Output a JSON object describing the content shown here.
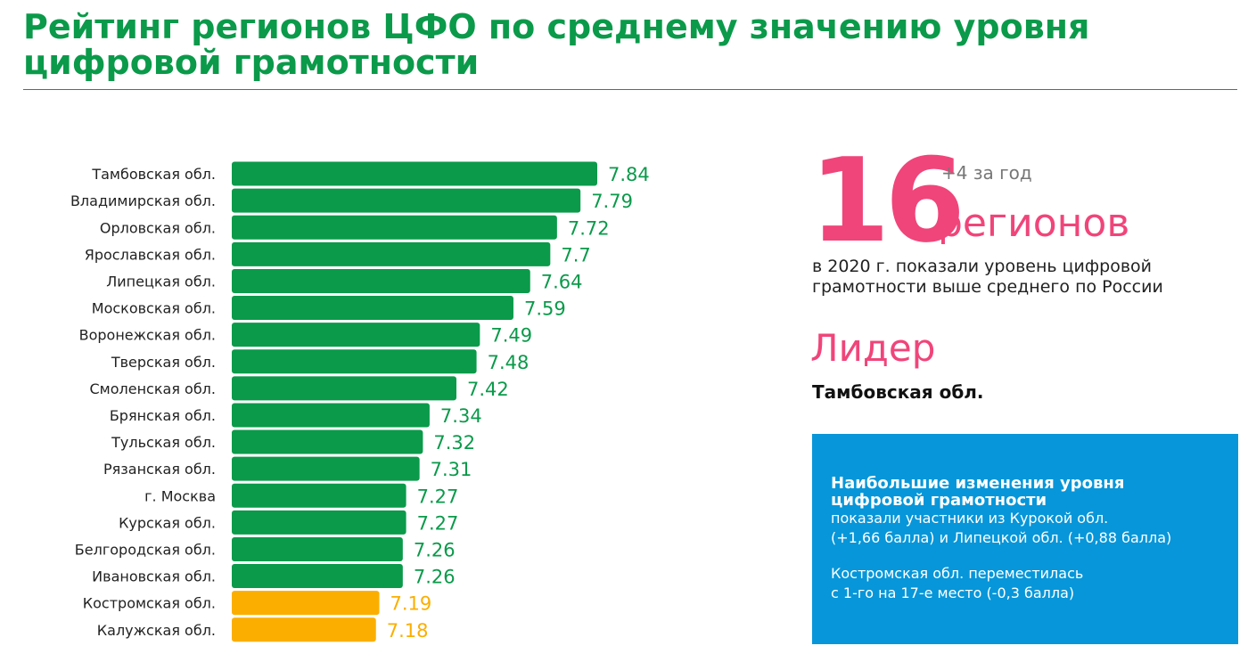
{
  "title": "Рейтинг регионов ЦФО по среднему значению уровня цифровой грамотности",
  "colors": {
    "green": "#0a9a4a",
    "orange": "#fbae00",
    "pink": "#f0457a",
    "blue": "#0796d9"
  },
  "stat": {
    "number": "16",
    "delta": "+4 за год",
    "unit": "регионов",
    "description": "в 2020 г. показали уровень цифровой грамотности выше среднего по России"
  },
  "leader": {
    "label": "Лидер",
    "name": "Тамбовская обл."
  },
  "info_box": {
    "title": "Наибольшие изменения уровня цифровой грамотности",
    "line1": "показали участники из Курокой обл.",
    "line2": "(+1,66 балла) и Липецкой обл. (+0,88 балла)",
    "line3": "Костромская обл. переместилась",
    "line4": "с 1-го на 17-е место (-0,3 балла)"
  },
  "chart_data": {
    "type": "bar",
    "orientation": "horizontal",
    "categories": [
      "Тамбовская обл.",
      "Владимирская обл.",
      "Орловская обл.",
      "Ярославская обл.",
      "Липецкая обл.",
      "Московская обл.",
      "Воронежская обл.",
      "Тверская обл.",
      "Смоленская обл.",
      "Брянская обл.",
      "Тульская обл.",
      "Рязанская обл.",
      "г. Москва",
      "Курская обл.",
      "Белгородская обл.",
      "Ивановская обл.",
      "Костромская обл.",
      "Калужская обл."
    ],
    "values": [
      7.84,
      7.79,
      7.72,
      7.7,
      7.64,
      7.59,
      7.49,
      7.48,
      7.42,
      7.34,
      7.32,
      7.31,
      7.27,
      7.27,
      7.26,
      7.26,
      7.19,
      7.18
    ],
    "value_labels": [
      "7.84",
      "7.79",
      "7.72",
      "7.7",
      "7.64",
      "7.59",
      "7.49",
      "7.48",
      "7.42",
      "7.34",
      "7.32",
      "7.31",
      "7.27",
      "7.27",
      "7.26",
      "7.26",
      "7.19",
      "7.18"
    ],
    "bar_colors": [
      "green",
      "green",
      "green",
      "green",
      "green",
      "green",
      "green",
      "green",
      "green",
      "green",
      "green",
      "green",
      "green",
      "green",
      "green",
      "green",
      "orange",
      "orange"
    ],
    "xlim": [
      6.75,
      7.84
    ],
    "xlabel": "",
    "ylabel": "",
    "grid": false,
    "legend": "none"
  }
}
